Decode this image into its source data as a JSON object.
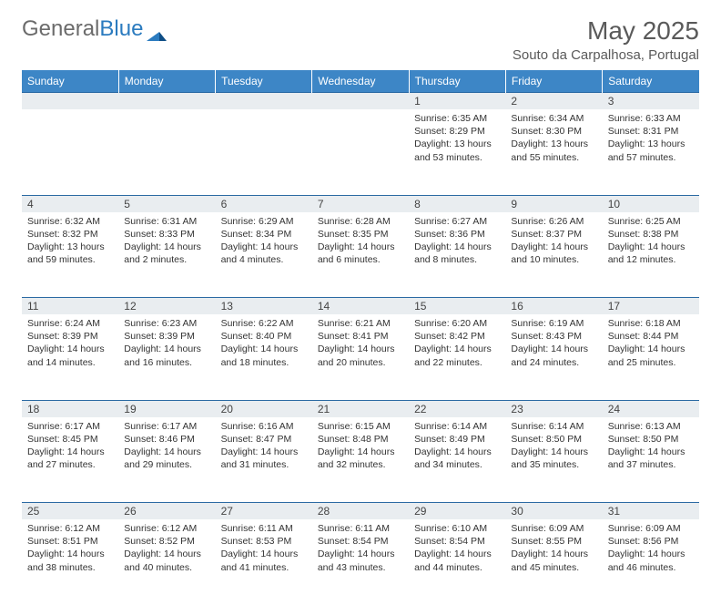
{
  "brand": {
    "part1": "General",
    "part2": "Blue"
  },
  "title": "May 2025",
  "subtitle": "Souto da Carpalhosa, Portugal",
  "colors": {
    "header_bg": "#3d86c6",
    "header_text": "#ffffff",
    "daynum_bg": "#e9edf0",
    "border": "#2b6aa3",
    "title_color": "#5a5a5a",
    "body_text": "#333333"
  },
  "weekdays": [
    "Sunday",
    "Monday",
    "Tuesday",
    "Wednesday",
    "Thursday",
    "Friday",
    "Saturday"
  ],
  "weeks": [
    [
      null,
      null,
      null,
      null,
      {
        "n": "1",
        "sr": "6:35 AM",
        "ss": "8:29 PM",
        "dl": "13 hours and 53 minutes."
      },
      {
        "n": "2",
        "sr": "6:34 AM",
        "ss": "8:30 PM",
        "dl": "13 hours and 55 minutes."
      },
      {
        "n": "3",
        "sr": "6:33 AM",
        "ss": "8:31 PM",
        "dl": "13 hours and 57 minutes."
      }
    ],
    [
      {
        "n": "4",
        "sr": "6:32 AM",
        "ss": "8:32 PM",
        "dl": "13 hours and 59 minutes."
      },
      {
        "n": "5",
        "sr": "6:31 AM",
        "ss": "8:33 PM",
        "dl": "14 hours and 2 minutes."
      },
      {
        "n": "6",
        "sr": "6:29 AM",
        "ss": "8:34 PM",
        "dl": "14 hours and 4 minutes."
      },
      {
        "n": "7",
        "sr": "6:28 AM",
        "ss": "8:35 PM",
        "dl": "14 hours and 6 minutes."
      },
      {
        "n": "8",
        "sr": "6:27 AM",
        "ss": "8:36 PM",
        "dl": "14 hours and 8 minutes."
      },
      {
        "n": "9",
        "sr": "6:26 AM",
        "ss": "8:37 PM",
        "dl": "14 hours and 10 minutes."
      },
      {
        "n": "10",
        "sr": "6:25 AM",
        "ss": "8:38 PM",
        "dl": "14 hours and 12 minutes."
      }
    ],
    [
      {
        "n": "11",
        "sr": "6:24 AM",
        "ss": "8:39 PM",
        "dl": "14 hours and 14 minutes."
      },
      {
        "n": "12",
        "sr": "6:23 AM",
        "ss": "8:39 PM",
        "dl": "14 hours and 16 minutes."
      },
      {
        "n": "13",
        "sr": "6:22 AM",
        "ss": "8:40 PM",
        "dl": "14 hours and 18 minutes."
      },
      {
        "n": "14",
        "sr": "6:21 AM",
        "ss": "8:41 PM",
        "dl": "14 hours and 20 minutes."
      },
      {
        "n": "15",
        "sr": "6:20 AM",
        "ss": "8:42 PM",
        "dl": "14 hours and 22 minutes."
      },
      {
        "n": "16",
        "sr": "6:19 AM",
        "ss": "8:43 PM",
        "dl": "14 hours and 24 minutes."
      },
      {
        "n": "17",
        "sr": "6:18 AM",
        "ss": "8:44 PM",
        "dl": "14 hours and 25 minutes."
      }
    ],
    [
      {
        "n": "18",
        "sr": "6:17 AM",
        "ss": "8:45 PM",
        "dl": "14 hours and 27 minutes."
      },
      {
        "n": "19",
        "sr": "6:17 AM",
        "ss": "8:46 PM",
        "dl": "14 hours and 29 minutes."
      },
      {
        "n": "20",
        "sr": "6:16 AM",
        "ss": "8:47 PM",
        "dl": "14 hours and 31 minutes."
      },
      {
        "n": "21",
        "sr": "6:15 AM",
        "ss": "8:48 PM",
        "dl": "14 hours and 32 minutes."
      },
      {
        "n": "22",
        "sr": "6:14 AM",
        "ss": "8:49 PM",
        "dl": "14 hours and 34 minutes."
      },
      {
        "n": "23",
        "sr": "6:14 AM",
        "ss": "8:50 PM",
        "dl": "14 hours and 35 minutes."
      },
      {
        "n": "24",
        "sr": "6:13 AM",
        "ss": "8:50 PM",
        "dl": "14 hours and 37 minutes."
      }
    ],
    [
      {
        "n": "25",
        "sr": "6:12 AM",
        "ss": "8:51 PM",
        "dl": "14 hours and 38 minutes."
      },
      {
        "n": "26",
        "sr": "6:12 AM",
        "ss": "8:52 PM",
        "dl": "14 hours and 40 minutes."
      },
      {
        "n": "27",
        "sr": "6:11 AM",
        "ss": "8:53 PM",
        "dl": "14 hours and 41 minutes."
      },
      {
        "n": "28",
        "sr": "6:11 AM",
        "ss": "8:54 PM",
        "dl": "14 hours and 43 minutes."
      },
      {
        "n": "29",
        "sr": "6:10 AM",
        "ss": "8:54 PM",
        "dl": "14 hours and 44 minutes."
      },
      {
        "n": "30",
        "sr": "6:09 AM",
        "ss": "8:55 PM",
        "dl": "14 hours and 45 minutes."
      },
      {
        "n": "31",
        "sr": "6:09 AM",
        "ss": "8:56 PM",
        "dl": "14 hours and 46 minutes."
      }
    ]
  ],
  "labels": {
    "sunrise": "Sunrise: ",
    "sunset": "Sunset: ",
    "daylight": "Daylight: "
  }
}
